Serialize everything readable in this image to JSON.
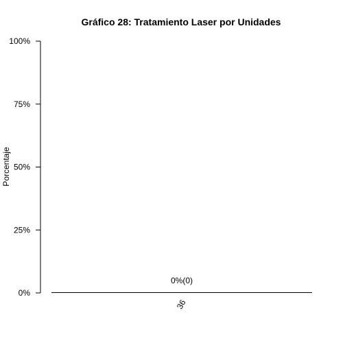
{
  "chart_data": {
    "type": "bar",
    "title": "Gráfico 28: Tratamiento Laser por Unidades",
    "xlabel": "",
    "ylabel": "Porcentaje",
    "ylim": [
      0,
      100
    ],
    "y_ticks": [
      "0%",
      "25%",
      "50%",
      "75%",
      "100%"
    ],
    "y_tick_values": [
      0,
      25,
      50,
      75,
      100
    ],
    "categories": [
      "36"
    ],
    "values": [
      0
    ],
    "data_labels": [
      "0%(0)"
    ],
    "grid": false,
    "legend": "none",
    "colors": {
      "text": "#000000",
      "axis": "#000000",
      "background": "#ffffff"
    }
  }
}
